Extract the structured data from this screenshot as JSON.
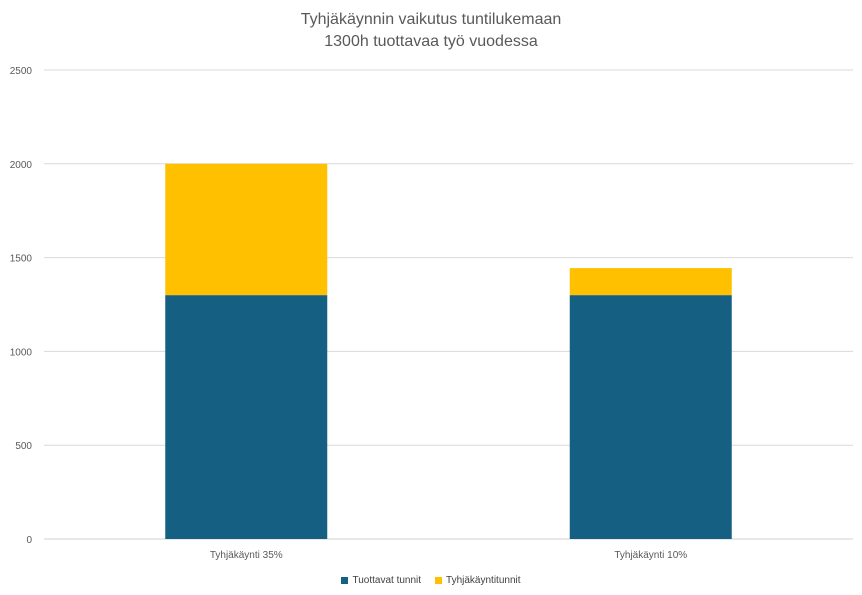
{
  "chart_data": {
    "type": "bar",
    "stacked": true,
    "title": "Tyhjäkäynnin vaikutus tuntilukemaan",
    "subtitle": "1300h tuottavaa työ vuodessa",
    "categories": [
      "Tyhjäkäynti 35%",
      "Tyhjäkäynti 10%"
    ],
    "series": [
      {
        "name": "Tuottavat tunnit",
        "values": [
          1300,
          1300
        ],
        "color": "#156082"
      },
      {
        "name": "Tyhjäkäyntitunnit",
        "values": [
          700,
          144
        ],
        "color": "#FFC000"
      }
    ],
    "yticks": [
      "0",
      "500",
      "1000",
      "1500",
      "2000",
      "2500"
    ],
    "ylim": [
      0,
      2500
    ],
    "grid": true,
    "legend": "bottom-center"
  }
}
